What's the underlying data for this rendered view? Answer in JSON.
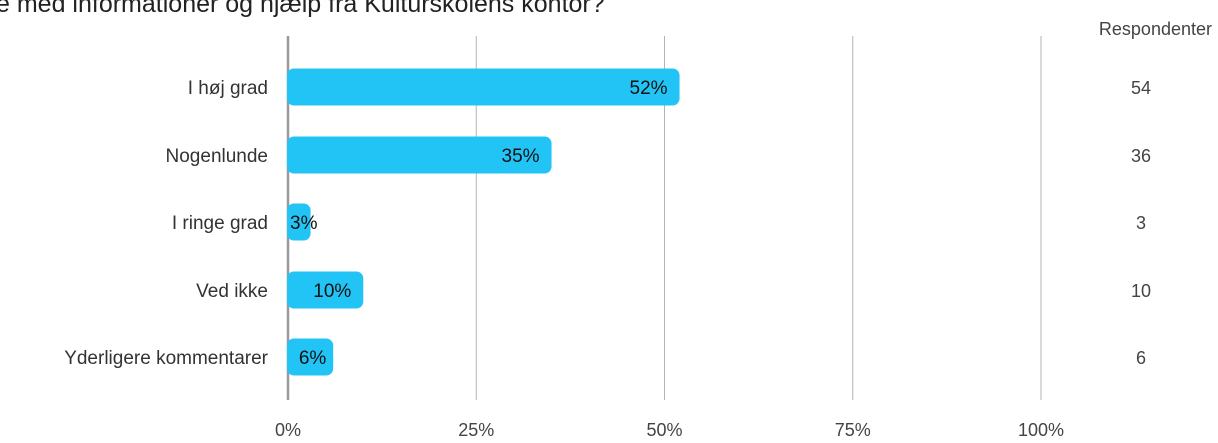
{
  "colors": {
    "bar": "#22c4f5",
    "grid": "#b3b3b3",
    "axis": "#999999"
  },
  "chart_data": {
    "type": "bar",
    "orientation": "horizontal",
    "title": "e med informationer og hjælp fra Kulturskolens kontor?",
    "respondents_header": "Respondenter",
    "categories": [
      "I høj grad",
      "Nogenlunde",
      "I ringe grad",
      "Ved ikke",
      "Yderligere kommentarer"
    ],
    "values": [
      52,
      35,
      3,
      10,
      6
    ],
    "data_labels": [
      "52%",
      "35%",
      "3%",
      "10%",
      "6%"
    ],
    "respondents": [
      "54",
      "36",
      "3",
      "10",
      "6"
    ],
    "xlim": [
      0,
      100
    ],
    "ticks": [
      0,
      25,
      50,
      75,
      100
    ],
    "tick_labels": [
      "0%",
      "25%",
      "50%",
      "75%",
      "100%"
    ],
    "grid": true,
    "legend": "none"
  }
}
